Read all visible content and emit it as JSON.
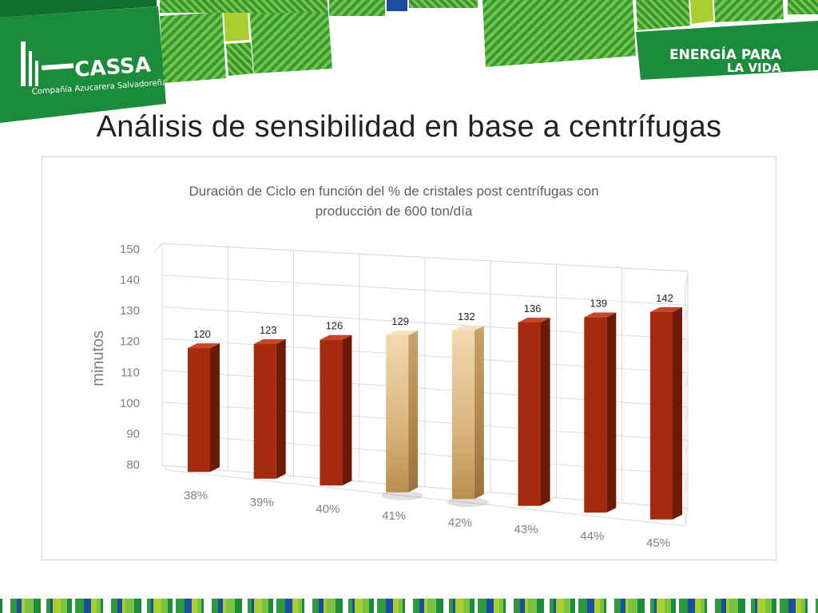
{
  "slide": {
    "title": "Análisis de sensibilidad en base a centrífugas"
  },
  "header": {
    "logo_name": "CASSA",
    "logo_subtitle": "Compañía Azucarera Salvadoreña",
    "slogan_line1": "ENERGÍA PARA",
    "slogan_line2": "LA VIDA"
  },
  "colors": {
    "brand_green": "#1c8c3c",
    "stripe_green": "#7cc242",
    "lime": "#a8cf2f",
    "bar_red": "#a52a0e",
    "bar_tan": "#d9b47c"
  },
  "chart_data": {
    "type": "bar",
    "title": "Duración de Ciclo en función del % de cristales post centrífugas con producción de 600 ton/día",
    "xlabel": "",
    "ylabel": "minutos",
    "categories": [
      "38%",
      "39%",
      "40%",
      "41%",
      "42%",
      "43%",
      "44%",
      "45%"
    ],
    "values": [
      120,
      123,
      126,
      129,
      132,
      136,
      139,
      142
    ],
    "highlighted": [
      "41%",
      "42%"
    ],
    "ylim": [
      80,
      150
    ],
    "yticks": [
      80,
      90,
      100,
      110,
      120,
      130,
      140,
      150
    ],
    "grid": true,
    "style": "3d-column"
  }
}
